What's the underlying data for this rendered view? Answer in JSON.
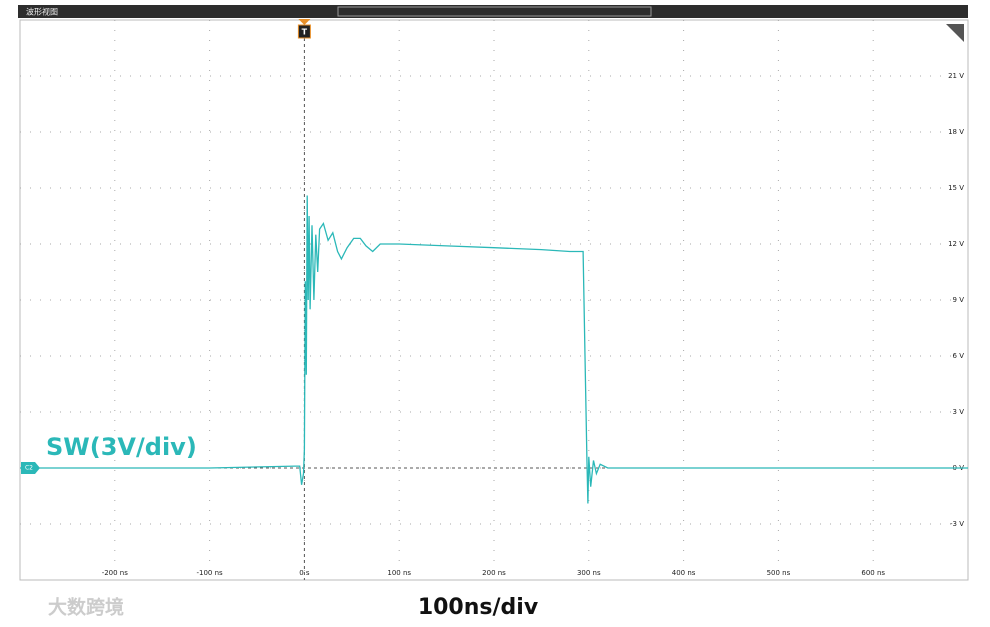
{
  "chart_data": {
    "type": "line",
    "title": "波形视图",
    "annotation": "SW(3V/div)",
    "channel_label": "C2",
    "trigger_label": "T",
    "footer": "100ns/div",
    "watermark": "大数跨境",
    "color": "#2bb8b8",
    "grid": true,
    "x": [
      -300,
      -100,
      -10,
      -5,
      -3,
      -1,
      0,
      1,
      2,
      3,
      4,
      5,
      6,
      8,
      10,
      12,
      14,
      16,
      20,
      25,
      30,
      35,
      39,
      45,
      52,
      59,
      65,
      72,
      80,
      100,
      150,
      200,
      250,
      280,
      294,
      296,
      298,
      299,
      300,
      302,
      305,
      308,
      312,
      320,
      400,
      500,
      600,
      700
    ],
    "values": [
      0,
      0,
      0.1,
      0.1,
      -0.9,
      -0.3,
      1,
      10,
      5,
      14.6,
      9,
      13.5,
      8.5,
      13,
      9,
      12.5,
      10.5,
      12.8,
      13.1,
      12.2,
      12.6,
      11.6,
      11.2,
      11.8,
      12.3,
      12.3,
      11.9,
      11.6,
      12,
      12,
      11.9,
      11.8,
      11.7,
      11.6,
      11.6,
      6,
      0.5,
      -1.9,
      0.6,
      -1,
      0.4,
      -0.3,
      0.2,
      0,
      0,
      0,
      0,
      0
    ],
    "xlim": [
      -300,
      700
    ],
    "ylim": [
      -6,
      24
    ],
    "xticks": [
      {
        "value": -200,
        "label": "-200 ns"
      },
      {
        "value": -100,
        "label": "-100 ns"
      },
      {
        "value": 0,
        "label": "0 s"
      },
      {
        "value": 100,
        "label": "100 ns"
      },
      {
        "value": 200,
        "label": "200 ns"
      },
      {
        "value": 300,
        "label": "300 ns"
      },
      {
        "value": 400,
        "label": "400 ns"
      },
      {
        "value": 500,
        "label": "500 ns"
      },
      {
        "value": 600,
        "label": "600 ns"
      }
    ],
    "yticks": [
      {
        "value": -3,
        "label": "-3 V"
      },
      {
        "value": 0,
        "label": "0 V"
      },
      {
        "value": 3,
        "label": "3 V"
      },
      {
        "value": 6,
        "label": "6 V"
      },
      {
        "value": 9,
        "label": "9 V"
      },
      {
        "value": 12,
        "label": "12 V"
      },
      {
        "value": 15,
        "label": "15 V"
      },
      {
        "value": 18,
        "label": "18 V"
      },
      {
        "value": 21,
        "label": "21 V"
      }
    ]
  }
}
